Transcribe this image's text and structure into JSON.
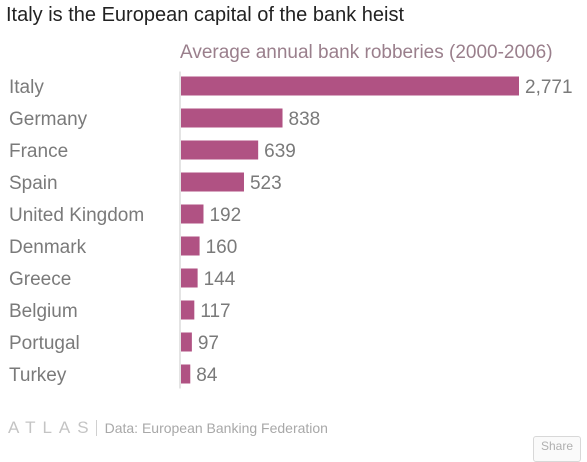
{
  "header": {
    "title": "Italy is the European capital of the bank heist",
    "subtitle": "Average annual bank robberies (2000-2006)"
  },
  "chart_data": {
    "type": "bar",
    "orientation": "horizontal",
    "title": "Italy is the European capital of the bank heist",
    "subtitle": "Average annual bank robberies (2000-2006)",
    "categories": [
      "Italy",
      "Germany",
      "France",
      "Spain",
      "United Kingdom",
      "Denmark",
      "Greece",
      "Belgium",
      "Portugal",
      "Turkey"
    ],
    "values": [
      2771,
      838,
      639,
      523,
      192,
      160,
      144,
      117,
      97,
      84
    ],
    "value_labels": [
      "2,771",
      "838",
      "639",
      "523",
      "192",
      "160",
      "144",
      "117",
      "97",
      "84"
    ],
    "xlim": [
      0,
      2771
    ],
    "grid": false,
    "legend": "none",
    "bar_color": "#b05283",
    "label_color": "#7a7a7a",
    "baseline_color": "#c9c9c9"
  },
  "footer": {
    "logo": "ATLAS",
    "source": "Data: European Banking Federation",
    "share_label": "Share"
  }
}
